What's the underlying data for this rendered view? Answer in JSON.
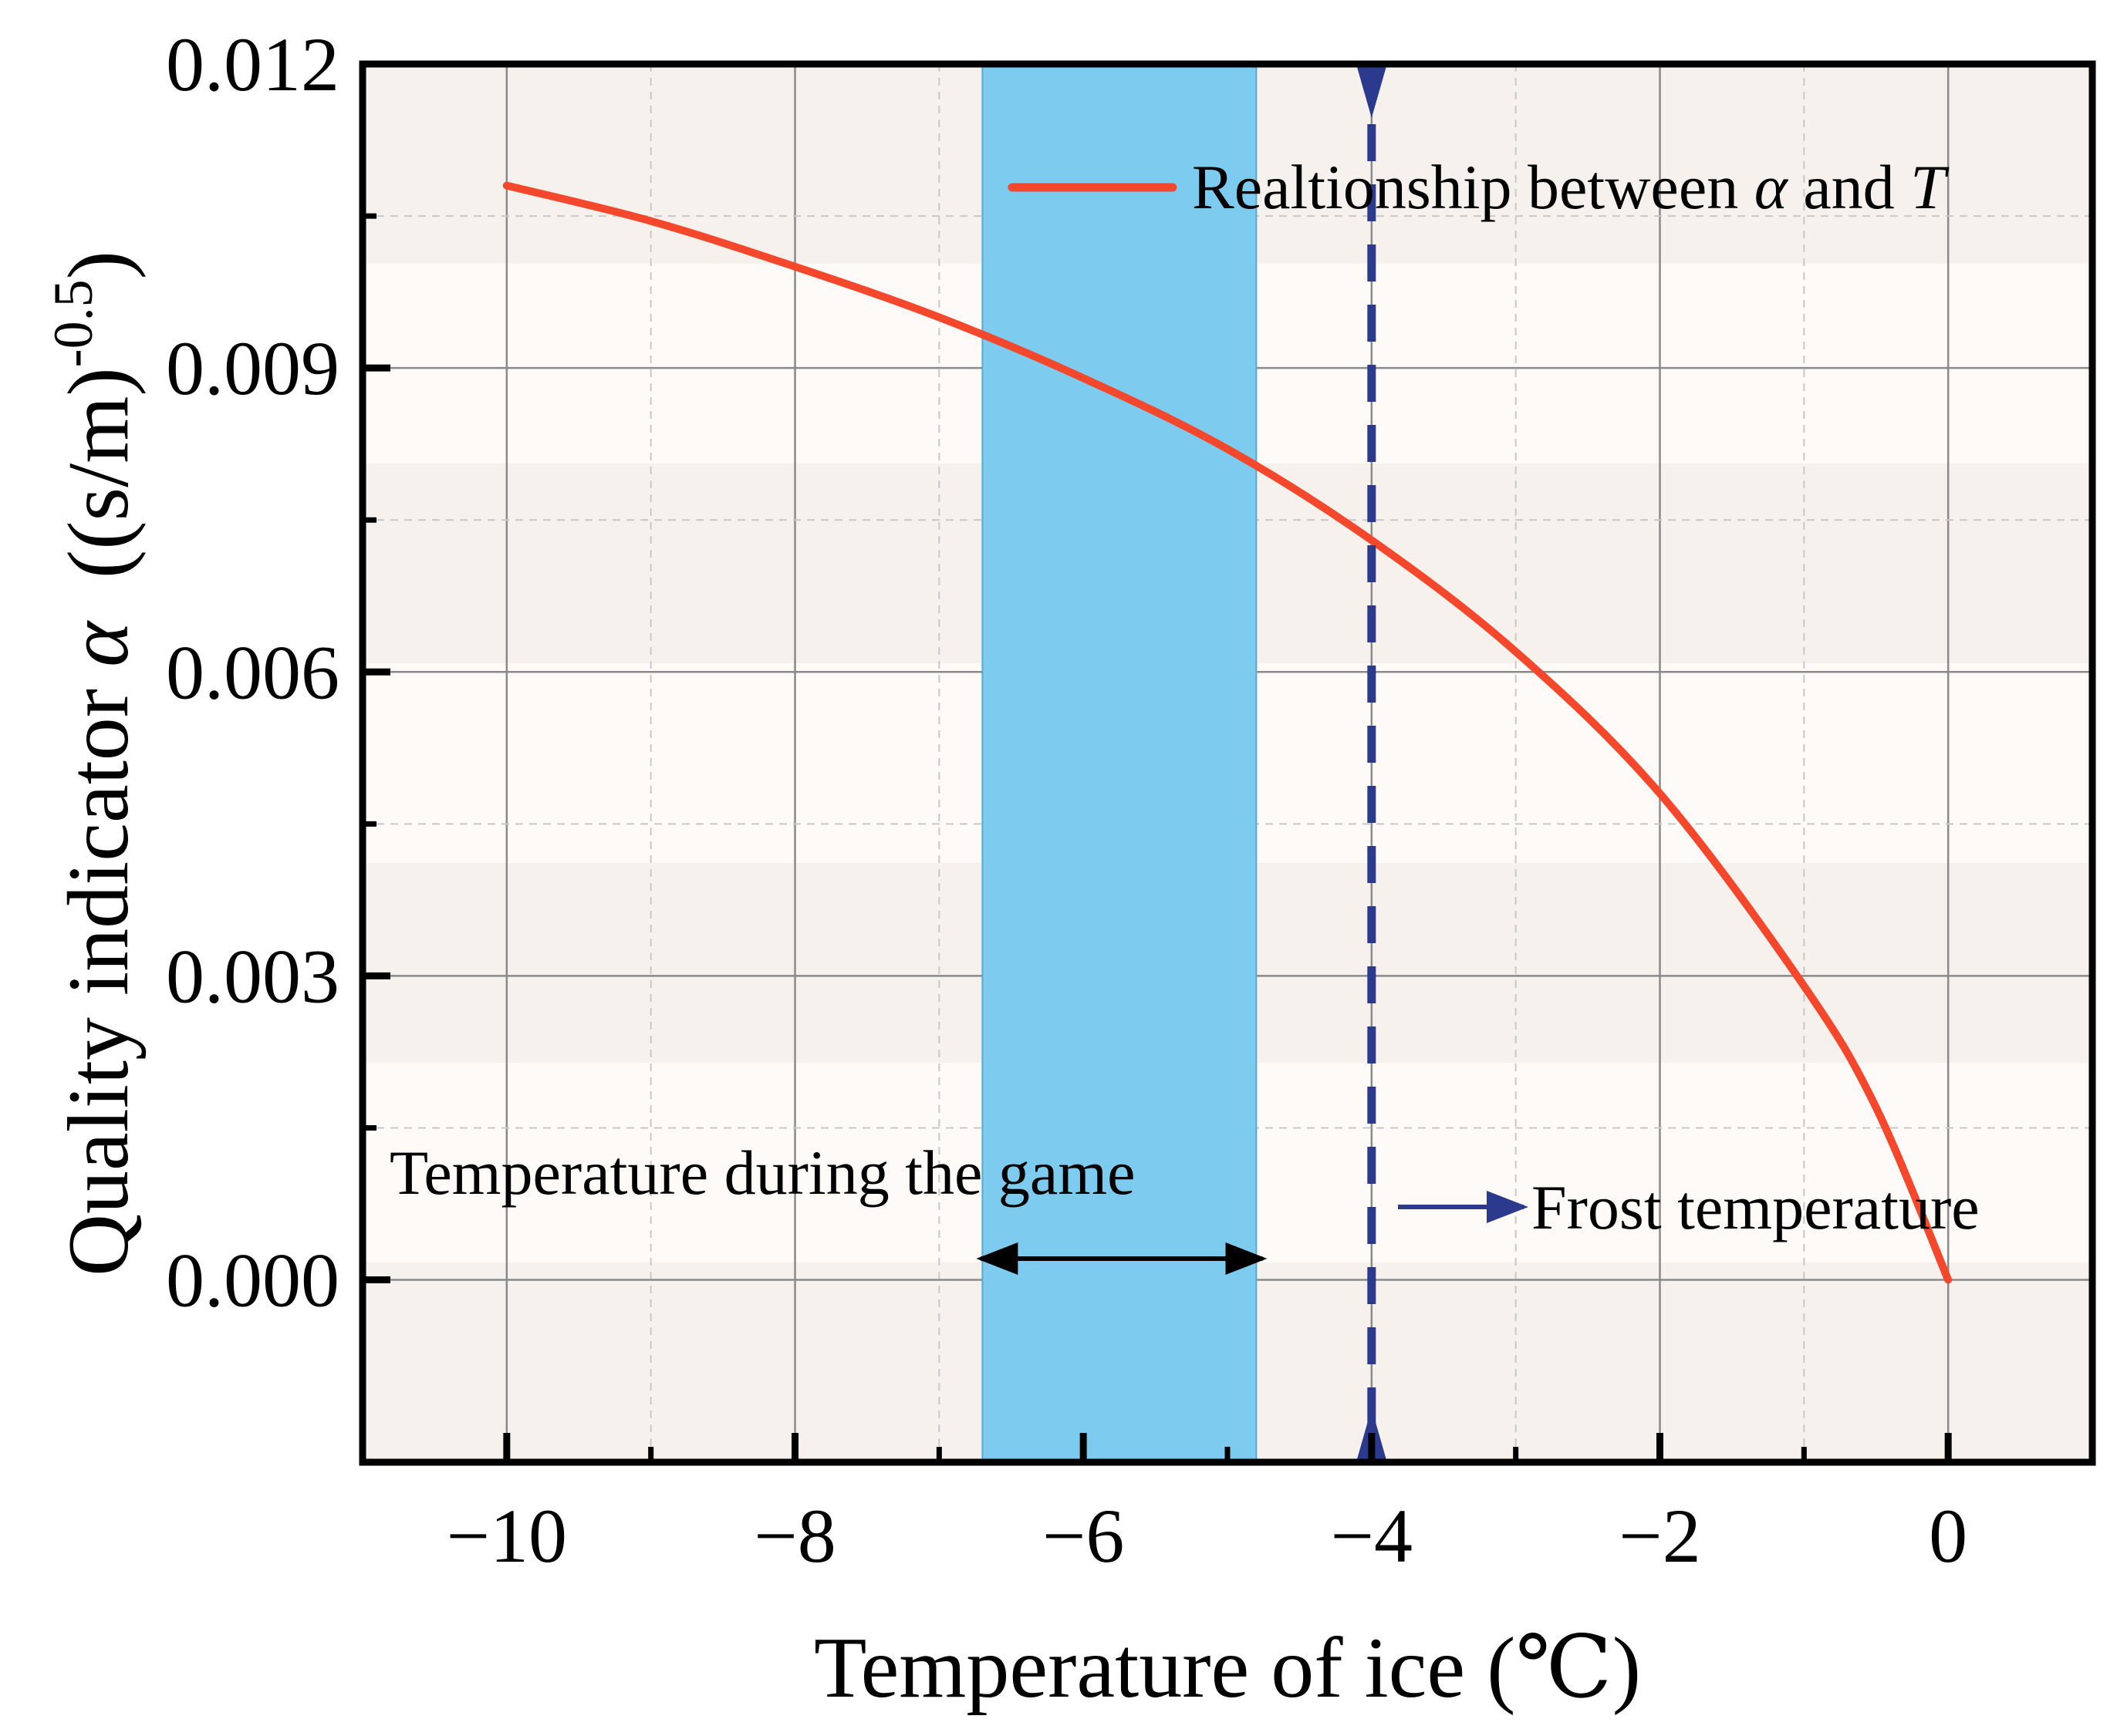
{
  "chart_data": {
    "type": "line",
    "title": "",
    "xlabel": "Temperature of ice (℃)",
    "ylabel": {
      "prefix": "Quality indicator ",
      "symbol": "α",
      "units": "  ((s/m)",
      "exponent": "-0.5",
      "suffix": ")"
    },
    "xlim": [
      -11,
      1
    ],
    "ylim": [
      -0.0018,
      0.012
    ],
    "xticks": [
      -10,
      -8,
      -6,
      -4,
      -2,
      0
    ],
    "xtick_labels": [
      "−10",
      "−8",
      "−6",
      "−4",
      "−2",
      "0"
    ],
    "yticks": [
      0.0,
      0.003,
      0.006,
      0.009,
      0.012
    ],
    "ytick_labels": [
      "0.000",
      "0.003",
      "0.006",
      "0.009",
      "0.012"
    ],
    "grid": true,
    "legend": {
      "position": "top-right",
      "text_prefix": "Realtionship between ",
      "text_alpha": "α",
      "text_mid": " and ",
      "text_T": "T"
    },
    "series": [
      {
        "name": "Realtionship between α and T",
        "color": "#f4472c",
        "x": [
          -10,
          -9,
          -8,
          -7,
          -6,
          -5,
          -4,
          -3,
          -2,
          -1,
          -0.5,
          0
        ],
        "y": [
          0.0108,
          0.01045,
          0.01,
          0.0095,
          0.0089,
          0.0082,
          0.0073,
          0.0062,
          0.0048,
          0.0029,
          0.0017,
          0.0
        ]
      }
    ],
    "shaded_band": {
      "x_start": -6.7,
      "x_end": -4.8,
      "color": "#7dcbee",
      "label": "Temperature during the game"
    },
    "vertical_line": {
      "x": -4,
      "color": "#2b3a8c",
      "style": "dashed",
      "label": "Frost temperature"
    }
  }
}
